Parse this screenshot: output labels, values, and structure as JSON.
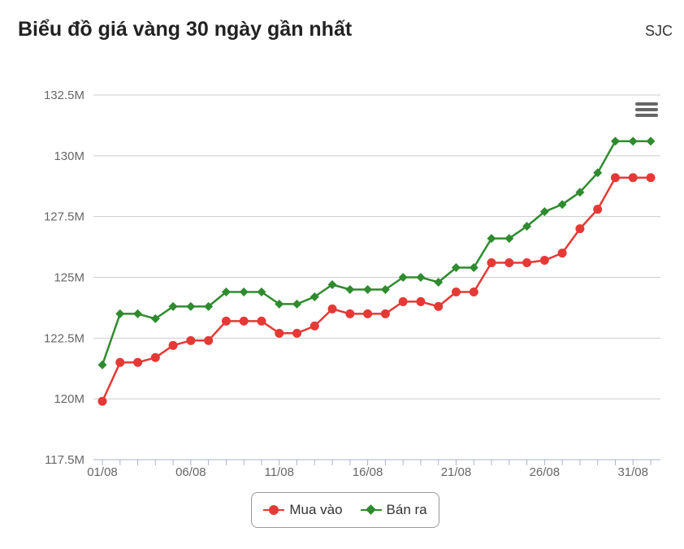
{
  "header": {
    "title": "Biểu đồ giá vàng 30 ngày gần nhất",
    "brand": "SJC"
  },
  "icons": {
    "menu": "hamburger-menu-icon"
  },
  "colors": {
    "buy": "#e53935",
    "sell": "#2e8b2e",
    "grid": "#cccccc"
  },
  "chart_data": {
    "type": "line",
    "title": "Biểu đồ giá vàng 30 ngày gần nhất",
    "xlabel": "",
    "ylabel": "",
    "x": [
      "01/08",
      "02/08",
      "03/08",
      "04/08",
      "05/08",
      "06/08",
      "07/08",
      "08/08",
      "09/08",
      "10/08",
      "11/08",
      "12/08",
      "13/08",
      "14/08",
      "15/08",
      "16/08",
      "17/08",
      "18/08",
      "19/08",
      "20/08",
      "21/08",
      "22/08",
      "23/08",
      "24/08",
      "25/08",
      "26/08",
      "27/08",
      "28/08",
      "29/08",
      "30/08",
      "31/08",
      "01/09"
    ],
    "x_tick_labels": [
      "01/08",
      "06/08",
      "11/08",
      "16/08",
      "21/08",
      "26/08",
      "31/08"
    ],
    "y_tick_labels": [
      "117.5M",
      "120M",
      "122.5M",
      "125M",
      "127.5M",
      "130M",
      "132.5M"
    ],
    "y_ticks": [
      117.5,
      120,
      122.5,
      125,
      127.5,
      130,
      132.5
    ],
    "ylim": [
      117.5,
      132.5
    ],
    "unit": "M",
    "grid": true,
    "legend": "bottom-center",
    "series": [
      {
        "name": "Mua vào",
        "color": "#e53935",
        "marker": "circle",
        "values": [
          119.9,
          121.5,
          121.5,
          121.7,
          122.2,
          122.4,
          122.4,
          123.2,
          123.2,
          123.2,
          122.7,
          122.7,
          123.0,
          123.7,
          123.5,
          123.5,
          123.5,
          124.0,
          124.0,
          123.8,
          124.4,
          124.4,
          125.6,
          125.6,
          125.6,
          125.7,
          126.0,
          127.0,
          127.8,
          129.1,
          129.1,
          129.1
        ]
      },
      {
        "name": "Bán ra",
        "color": "#2e8b2e",
        "marker": "diamond",
        "values": [
          121.4,
          123.5,
          123.5,
          123.3,
          123.8,
          123.8,
          123.8,
          124.4,
          124.4,
          124.4,
          123.9,
          123.9,
          124.2,
          124.7,
          124.5,
          124.5,
          124.5,
          125.0,
          125.0,
          124.8,
          125.4,
          125.4,
          126.6,
          126.6,
          127.1,
          127.7,
          128.0,
          128.5,
          129.3,
          130.6,
          130.6,
          130.6
        ]
      }
    ]
  }
}
